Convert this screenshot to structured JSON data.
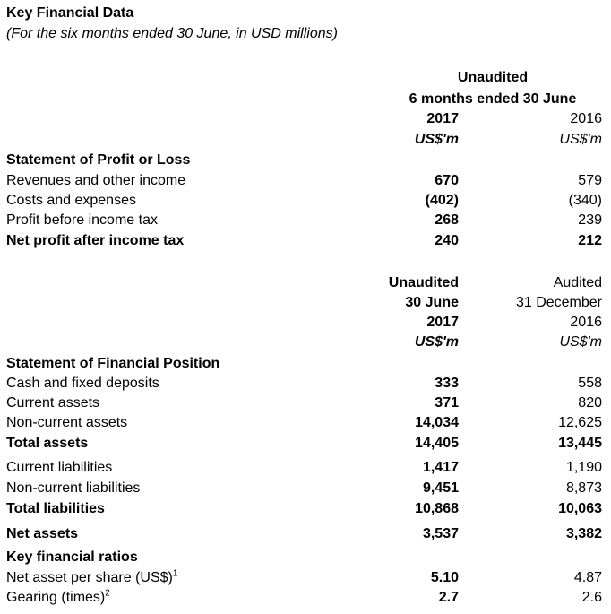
{
  "title": "Key Financial Data",
  "subtitle": "(For the six months ended 30 June, in USD millions)",
  "pl_header": {
    "status": "Unaudited",
    "period": "6 months ended 30 June",
    "col1_year": "2017",
    "col2_year": "2016",
    "unit": "US$'m"
  },
  "pl_section": "Statement of Profit or Loss",
  "pl_rows": [
    {
      "label": "Revenues and other income",
      "v2017": "670",
      "v2016": "579",
      "bold": false
    },
    {
      "label": "Costs and expenses",
      "v2017": "(402)",
      "v2016": "(340)",
      "bold": false
    },
    {
      "label": "Profit before income tax",
      "v2017": "268",
      "v2016": "239",
      "bold": false
    },
    {
      "label": "Net profit after income tax",
      "v2017": "240",
      "v2016": "212",
      "bold": true
    }
  ],
  "fp_header": {
    "col1_status": "Unaudited",
    "col2_status": "Audited",
    "col1_date": "30 June",
    "col2_date": "31 December",
    "col1_year": "2017",
    "col2_year": "2016",
    "unit": "US$'m"
  },
  "fp_section": "Statement of Financial Position",
  "fp_rows": [
    {
      "label": "Cash and fixed deposits",
      "v2017": "333",
      "v2016": "558",
      "bold": false
    },
    {
      "label": "Current assets",
      "v2017": "371",
      "v2016": "820",
      "bold": false
    },
    {
      "label": "Non-current assets",
      "v2017": "14,034",
      "v2016": "12,625",
      "bold": false
    },
    {
      "label": "Total assets",
      "v2017": "14,405",
      "v2016": "13,445",
      "bold": true
    },
    {
      "label": "Current liabilities",
      "v2017": "1,417",
      "v2016": "1,190",
      "bold": false
    },
    {
      "label": "Non-current liabilities",
      "v2017": "9,451",
      "v2016": "8,873",
      "bold": false
    },
    {
      "label": "Total liabilities",
      "v2017": "10,868",
      "v2016": "10,063",
      "bold": true
    },
    {
      "label": "Net assets",
      "v2017": "3,537",
      "v2016": "3,382",
      "bold": true
    }
  ],
  "ratios_section": "Key financial ratios",
  "ratio_rows": [
    {
      "label": "Net asset per share (US$)",
      "note": "1",
      "v2017": "5.10",
      "v2016": "4.87"
    },
    {
      "label": "Gearing (times)",
      "note": "2",
      "v2017": "2.7",
      "v2016": "2.6"
    }
  ]
}
